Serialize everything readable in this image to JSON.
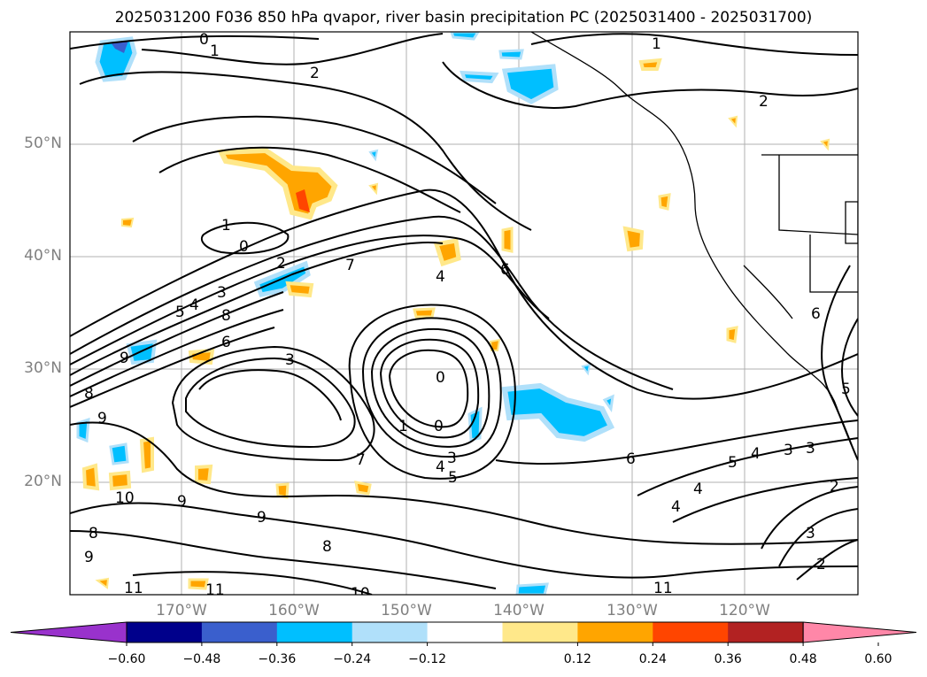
{
  "title": "2025031200 F036 850 hPa qvapor, river basin precipitation PC (2025031400 - 2025031700)",
  "lat_labels": [
    "50°N",
    "40°N",
    "30°N",
    "20°N"
  ],
  "lon_labels": [
    "170°W",
    "160°W",
    "150°W",
    "140°W",
    "130°W",
    "120°W"
  ],
  "contour_labels": [
    "0",
    "1",
    "2",
    "1",
    "2",
    "1",
    "0",
    "2",
    "7",
    "3",
    "4",
    "5",
    "8",
    "6",
    "9",
    "3",
    "0",
    "4",
    "6",
    "1",
    "0",
    "3",
    "4",
    "5",
    "7",
    "6",
    "5",
    "4",
    "3",
    "3",
    "2",
    "3",
    "2",
    "9",
    "10",
    "9",
    "9",
    "8",
    "8",
    "11",
    "10",
    "11",
    "11",
    "4",
    "6",
    "8",
    "9",
    "5",
    "4"
  ],
  "colorbar": {
    "ticks": [
      "−0.60",
      "−0.48",
      "−0.36",
      "−0.24",
      "−0.12",
      "0.12",
      "0.24",
      "0.36",
      "0.48",
      "0.60"
    ],
    "colors": [
      "#9932cc",
      "#00008b",
      "#3a5fcd",
      "#00bfff",
      "#b0e0fa",
      "#ffffff",
      "#ffe88a",
      "#ffa500",
      "#ff4500",
      "#b22222",
      "#ff87a8"
    ]
  },
  "colors": {
    "land_outline": "#000000",
    "grid": "#b0b0b0",
    "axis_label": "#808080"
  }
}
